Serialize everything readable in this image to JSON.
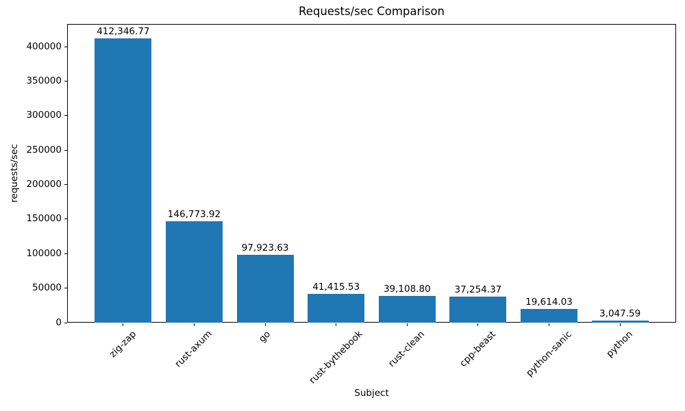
{
  "figure": {
    "title": "Requests/sec Comparison",
    "xlabel": "Subject",
    "ylabel": "requests/sec"
  },
  "chart_data": {
    "type": "bar",
    "title": "Requests/sec Comparison",
    "xlabel": "Subject",
    "ylabel": "requests/sec",
    "categories": [
      "zig-zap",
      "rust-axum",
      "go",
      "rust-bythebook",
      "rust-clean",
      "cpp-beast",
      "python-sanic",
      "python"
    ],
    "values": [
      412346.77,
      146773.92,
      97923.63,
      41415.53,
      39108.8,
      37254.37,
      19614.03,
      3047.59
    ],
    "value_labels": [
      "412,346.77",
      "146,773.92",
      "97,923.63",
      "41,415.53",
      "39,108.80",
      "37,254.37",
      "19,614.03",
      "3,047.59"
    ],
    "yticks": [
      0,
      50000,
      100000,
      150000,
      200000,
      250000,
      300000,
      350000,
      400000
    ],
    "ylim": [
      0,
      433000
    ],
    "bar_color": "#1f77b4",
    "text_color": "#000000",
    "grid": false,
    "legend_position": "none",
    "xtick_rotation_deg": 45
  }
}
